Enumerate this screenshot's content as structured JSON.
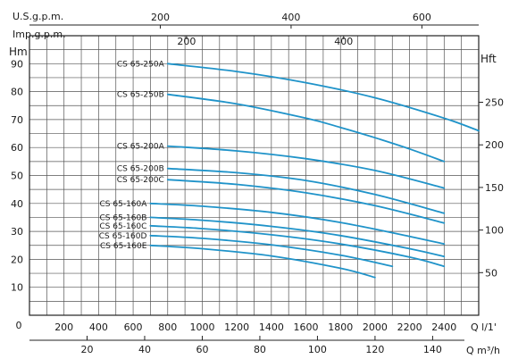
{
  "chart_data": {
    "type": "line",
    "axes": {
      "left": {
        "label": "Hm",
        "ticks": [
          10,
          20,
          30,
          40,
          50,
          60,
          70,
          80,
          90
        ],
        "range": [
          0,
          100
        ]
      },
      "right": {
        "label": "Hft",
        "ticks": [
          50,
          100,
          150,
          200,
          250
        ]
      },
      "bottom": {
        "label": "Q l/1'",
        "ticks": [
          0,
          200,
          400,
          600,
          800,
          1000,
          1200,
          1400,
          1600,
          1800,
          2000,
          2200,
          2400
        ],
        "range": [
          0,
          2600
        ]
      },
      "bottom2": {
        "label": "Q m³/h",
        "ticks": [
          20,
          40,
          60,
          80,
          100,
          120,
          140
        ]
      },
      "top": {
        "label": "U.S.g.p.m.",
        "ticks": [
          200,
          400,
          600
        ]
      },
      "top2": {
        "label": "Imp.g.p.m.",
        "ticks": [
          200,
          400
        ]
      }
    },
    "grid": true,
    "line_color": "#1f93c9",
    "series": [
      {
        "name": "CS 65-250A",
        "x": [
          800,
          1200,
          1600,
          2000,
          2400,
          2600
        ],
        "y": [
          90,
          87.2,
          83.2,
          77.8,
          70.5,
          66
        ]
      },
      {
        "name": "CS 65-250B",
        "x": [
          800,
          1200,
          1600,
          1800,
          2000,
          2200,
          2400
        ],
        "y": [
          79,
          75.6,
          70.5,
          67.2,
          63.5,
          59.5,
          55
        ]
      },
      {
        "name": "CS 65-200A",
        "x": [
          800,
          1200,
          1600,
          2000,
          2400
        ],
        "y": [
          60.5,
          58.8,
          56.0,
          51.8,
          45.5
        ]
      },
      {
        "name": "CS 65-200B",
        "x": [
          800,
          1200,
          1600,
          2000,
          2400
        ],
        "y": [
          52.5,
          51.0,
          48.2,
          43.2,
          36.5
        ]
      },
      {
        "name": "CS 65-200C",
        "x": [
          800,
          1200,
          1600,
          2000,
          2400
        ],
        "y": [
          48.5,
          46.8,
          43.8,
          39.2,
          33.0
        ]
      },
      {
        "name": "CS 65-160A",
        "x": [
          700,
          1000,
          1400,
          1800,
          2200,
          2400
        ],
        "y": [
          40,
          39.0,
          36.8,
          33.2,
          28.2,
          25.5
        ]
      },
      {
        "name": "CS 65-160B",
        "x": [
          700,
          1000,
          1400,
          1800,
          2200,
          2400
        ],
        "y": [
          35,
          34.0,
          31.8,
          28.5,
          23.8,
          21.0
        ]
      },
      {
        "name": "CS 65-160C",
        "x": [
          700,
          1000,
          1400,
          1800,
          2200,
          2400
        ],
        "y": [
          32,
          31.0,
          28.8,
          25.5,
          20.8,
          17.5
        ]
      },
      {
        "name": "CS 65-160D",
        "x": [
          700,
          1000,
          1400,
          1800,
          2100
        ],
        "y": [
          28.5,
          27.5,
          25.2,
          21.5,
          17.5
        ]
      },
      {
        "name": "CS 65-160E",
        "x": [
          700,
          1000,
          1400,
          1800,
          2000
        ],
        "y": [
          25,
          23.8,
          21.2,
          16.8,
          13.5
        ]
      }
    ]
  }
}
